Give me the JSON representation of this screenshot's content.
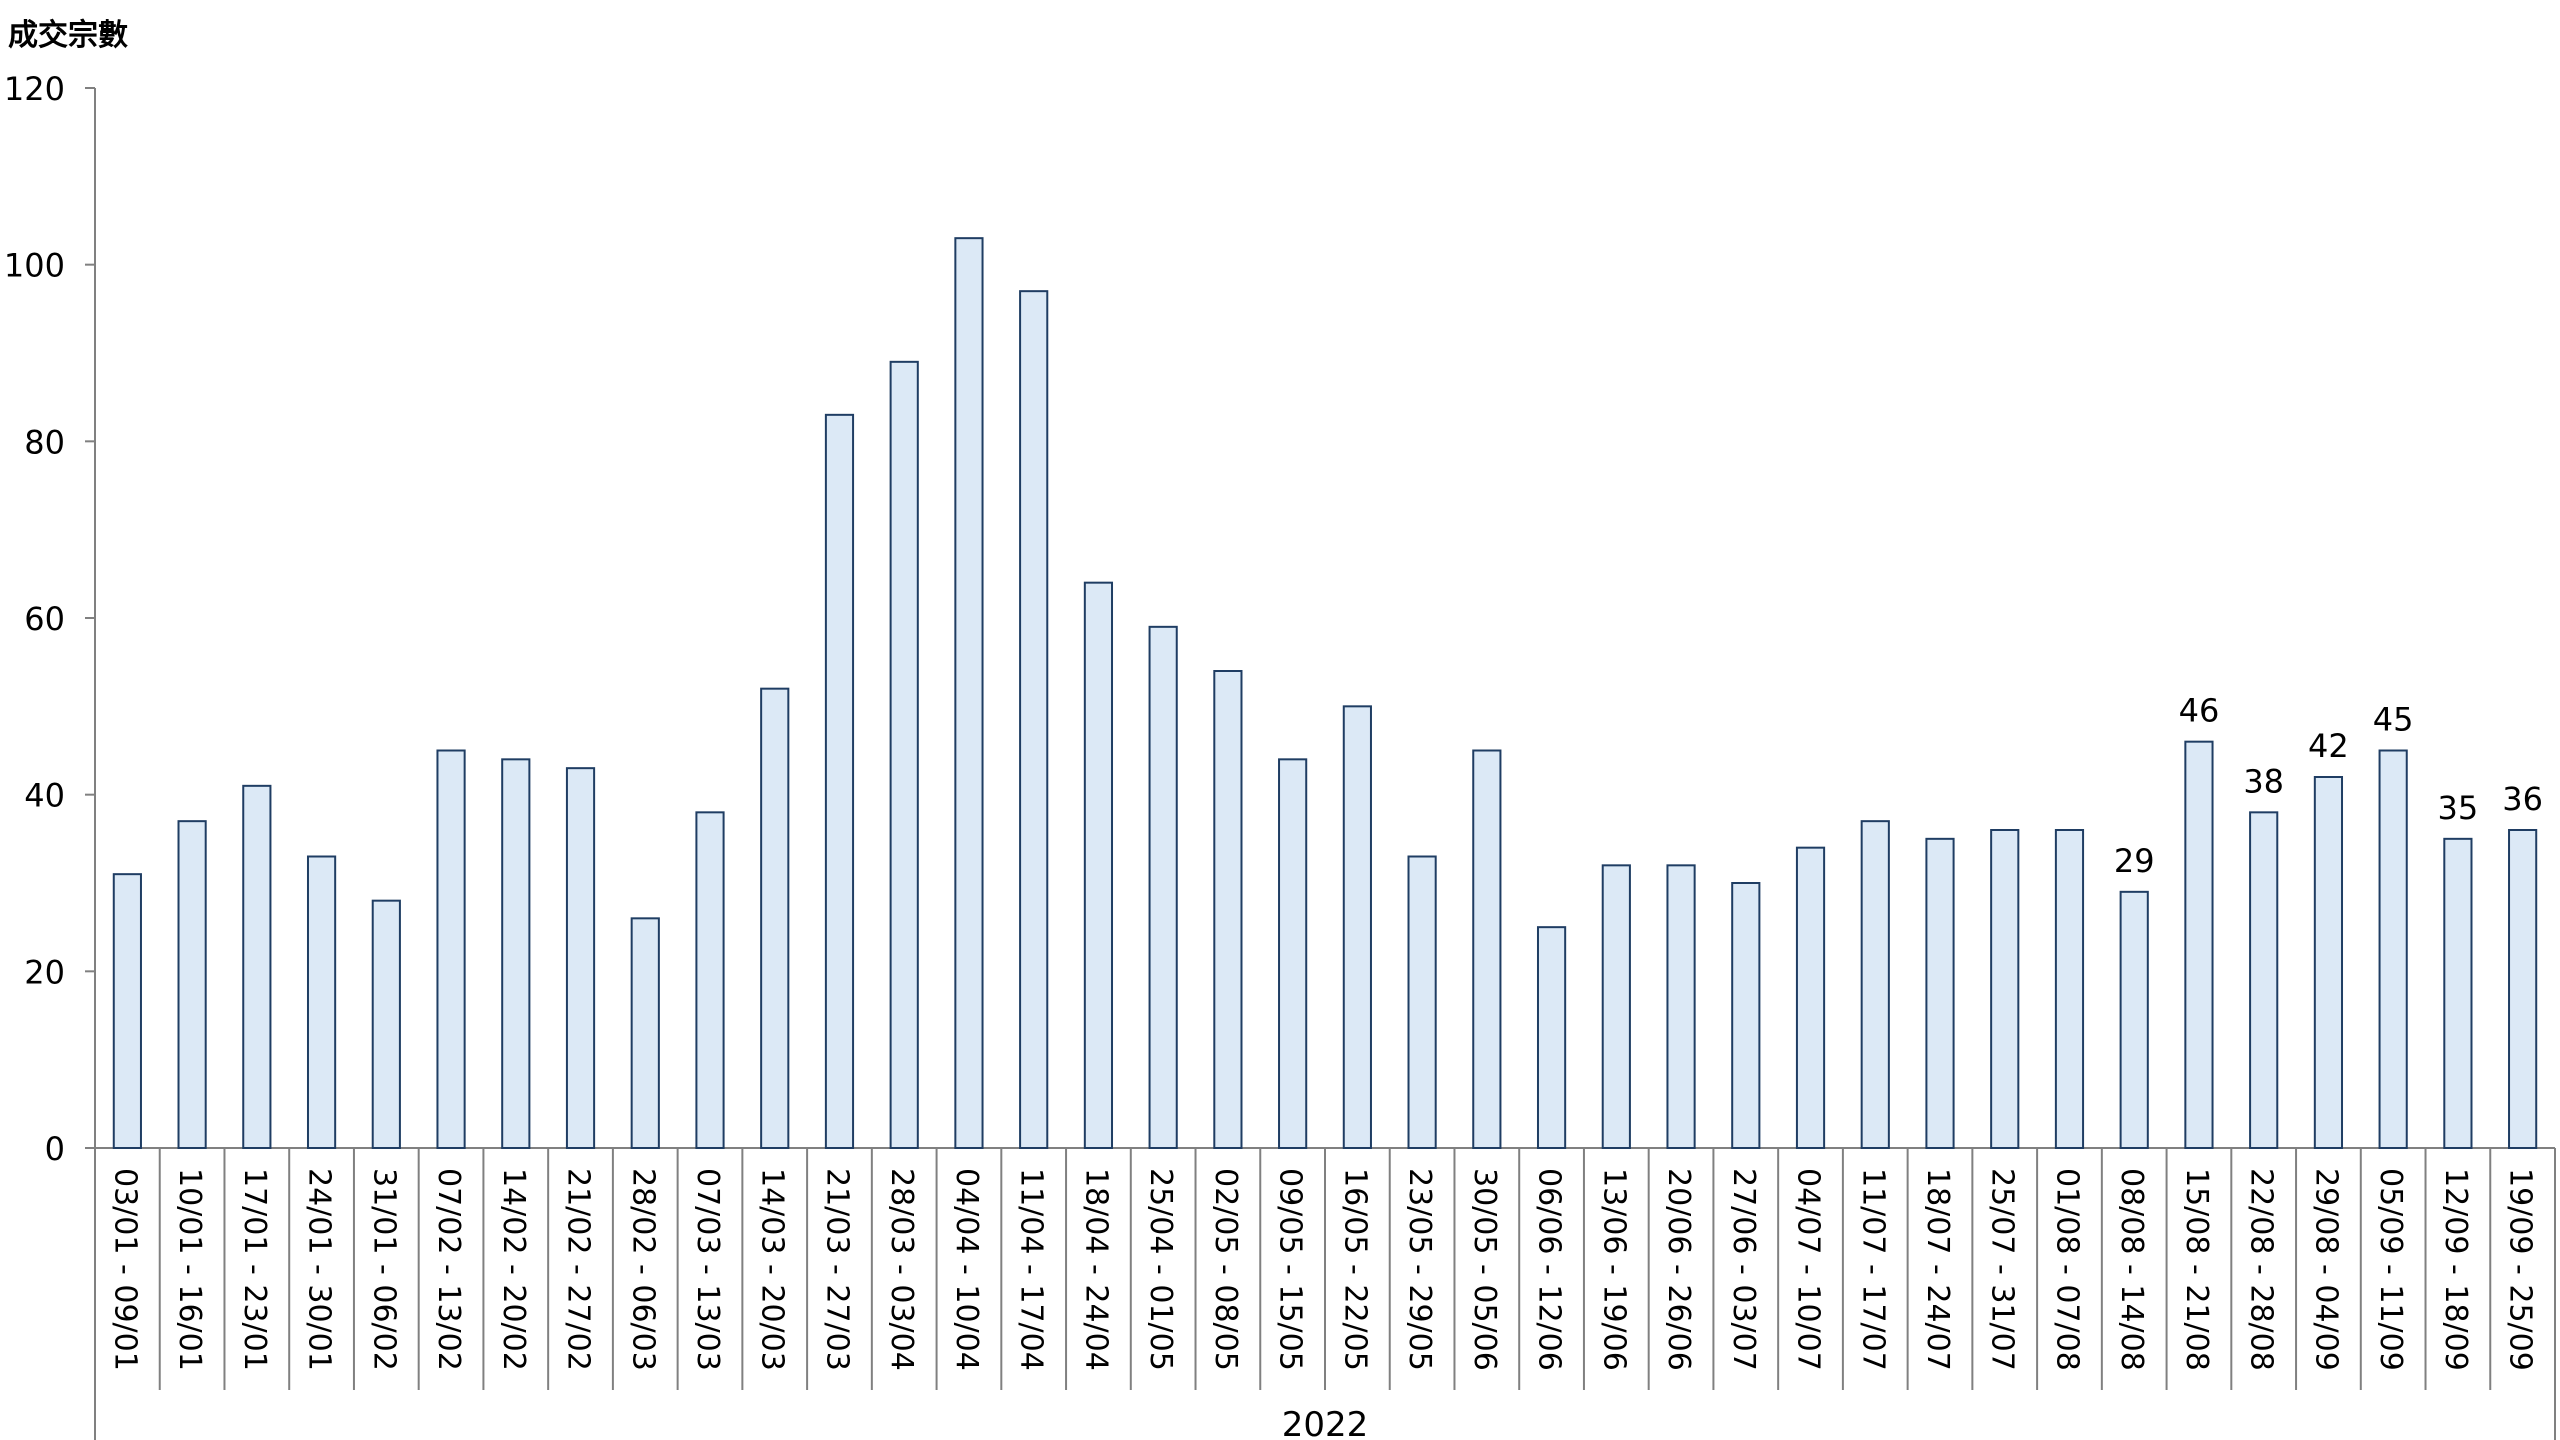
{
  "chart_data": {
    "type": "bar",
    "title": "",
    "ylabel": "成交宗數",
    "xlabel": "",
    "group_label": "2022",
    "ylim": [
      0,
      120
    ],
    "yticks": [
      0,
      20,
      40,
      60,
      80,
      100,
      120
    ],
    "grid": false,
    "legend": "none",
    "bar_fill": "#dce9f6",
    "bar_stroke": "#1f3d63",
    "categories": [
      "03/01 - 09/01",
      "10/01 - 16/01",
      "17/01 - 23/01",
      "24/01 - 30/01",
      "31/01 - 06/02",
      "07/02 - 13/02",
      "14/02 - 20/02",
      "21/02 - 27/02",
      "28/02 - 06/03",
      "07/03 - 13/03",
      "14/03 - 20/03",
      "21/03 - 27/03",
      "28/03 - 03/04",
      "04/04 - 10/04",
      "11/04 - 17/04",
      "18/04 - 24/04",
      "25/04 - 01/05",
      "02/05 - 08/05",
      "09/05 - 15/05",
      "16/05 - 22/05",
      "23/05 - 29/05",
      "30/05 - 05/06",
      "06/06 - 12/06",
      "13/06 - 19/06",
      "20/06 - 26/06",
      "27/06 - 03/07",
      "04/07 - 10/07",
      "11/07 - 17/07",
      "18/07 - 24/07",
      "25/07 - 31/07",
      "01/08 - 07/08",
      "08/08 - 14/08",
      "15/08 - 21/08",
      "22/08 - 28/08",
      "29/08 - 04/09",
      "05/09 - 11/09",
      "12/09 - 18/09",
      "19/09 - 25/09"
    ],
    "values": [
      31,
      37,
      41,
      33,
      28,
      45,
      44,
      43,
      26,
      38,
      52,
      83,
      89,
      103,
      97,
      64,
      59,
      54,
      44,
      50,
      33,
      45,
      25,
      32,
      32,
      30,
      34,
      37,
      35,
      36,
      36,
      29,
      46,
      38,
      42,
      45,
      35,
      36
    ],
    "data_labels": [
      null,
      null,
      null,
      null,
      null,
      null,
      null,
      null,
      null,
      null,
      null,
      null,
      null,
      null,
      null,
      null,
      null,
      null,
      null,
      null,
      null,
      null,
      null,
      null,
      null,
      null,
      null,
      null,
      null,
      null,
      null,
      "29",
      "46",
      "38",
      "42",
      "45",
      "35",
      "36"
    ]
  }
}
